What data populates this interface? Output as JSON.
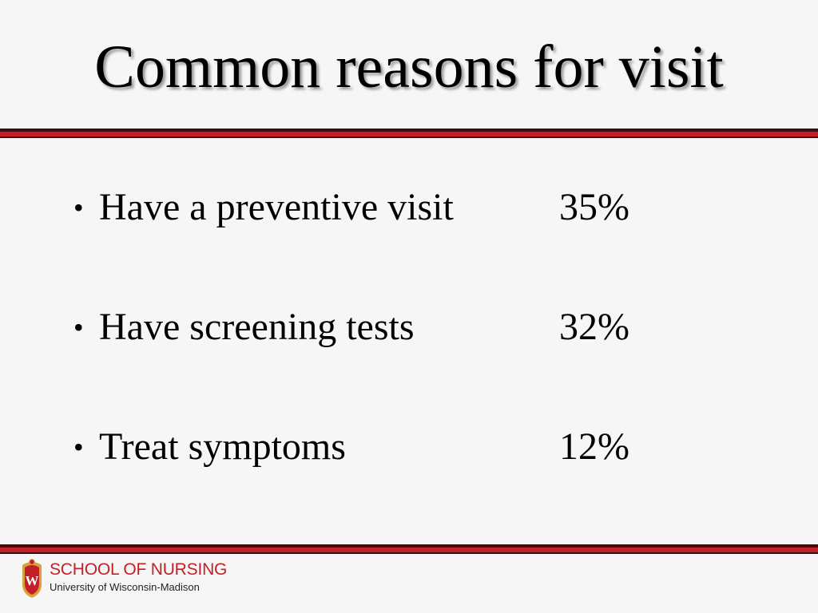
{
  "slide": {
    "title": "Common reasons for visit",
    "bullet_char": "•",
    "items": [
      {
        "label": "Have a preventive visit",
        "value": "35%"
      },
      {
        "label": "Have screening tests",
        "value": "32%"
      },
      {
        "label": "Treat symptoms",
        "value": "12%"
      }
    ]
  },
  "footer": {
    "school": "SCHOOL OF NURSING",
    "university": "University of Wisconsin-Madison",
    "crest_letter": "W"
  },
  "colors": {
    "background": "#f6f6f6",
    "accent_red": "#c41e26",
    "rule_dark": "#3a0d10",
    "crest_gold": "#d4a33a"
  }
}
